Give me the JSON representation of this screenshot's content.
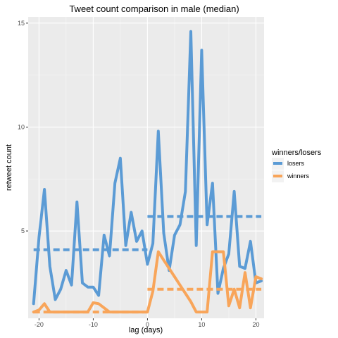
{
  "chart_data": {
    "type": "line",
    "title": "Tweet count comparison in male  (median)",
    "xlabel": "lag (days)",
    "ylabel": "retweet count",
    "xlim": [
      -22,
      21.5
    ],
    "ylim": [
      0.8,
      15.3
    ],
    "xticks": [
      -20,
      -10,
      0,
      10,
      20
    ],
    "yticks": [
      5,
      10,
      15
    ],
    "grid": true,
    "legend": {
      "title": "winners/losers",
      "position": "right"
    },
    "series": [
      {
        "name": "losers",
        "color": "#5b9bd5",
        "style": "solid",
        "x": [
          -21,
          -20,
          -19,
          -18,
          -17,
          -16,
          -15,
          -14,
          -13,
          -12,
          -11,
          -10,
          -9,
          -8,
          -7,
          -6,
          -5,
          -4,
          -3,
          -2,
          -1,
          0,
          1,
          2,
          3,
          4,
          5,
          6,
          7,
          8,
          9,
          10,
          11,
          12,
          13,
          14,
          15,
          16,
          17,
          18,
          19,
          20,
          21
        ],
        "y": [
          1.5,
          4.7,
          7.0,
          3.3,
          1.7,
          2.2,
          3.1,
          2.4,
          6.4,
          2.5,
          2.3,
          2.3,
          1.9,
          4.8,
          3.8,
          7.3,
          8.5,
          4.3,
          5.9,
          4.5,
          5.0,
          3.4,
          4.4,
          9.8,
          4.9,
          3.1,
          4.8,
          5.3,
          6.9,
          14.6,
          4.3,
          13.7,
          5.3,
          7.3,
          2.0,
          3.2,
          3.9,
          6.9,
          3.3,
          3.2,
          4.5,
          2.5,
          2.6
        ]
      },
      {
        "name": "winners",
        "color": "#f8a55a",
        "style": "solid",
        "x": [
          -21,
          -20,
          -19,
          -18,
          -17,
          -16,
          -15,
          -14,
          -13,
          -12,
          -11,
          -10,
          -9,
          -8,
          -7,
          -6,
          -5,
          -4,
          -3,
          -2,
          -1,
          0,
          1,
          2,
          3,
          4,
          5,
          6,
          7,
          8,
          9,
          10,
          11,
          12,
          13,
          14,
          15,
          16,
          17,
          18,
          19,
          20,
          21
        ],
        "y": [
          1.1,
          1.2,
          1.5,
          1.1,
          1.1,
          1.1,
          1.1,
          1.1,
          1.1,
          1.1,
          1.1,
          1.55,
          1.5,
          1.3,
          1.1,
          1.1,
          1.1,
          1.1,
          1.1,
          1.1,
          1.1,
          1.1,
          2.1,
          4.0,
          3.6,
          3.2,
          2.8,
          2.4,
          2.0,
          1.6,
          1.1,
          1.1,
          1.1,
          4.0,
          4.0,
          4.0,
          1.4,
          2.2,
          1.3,
          3.0,
          1.3,
          2.8,
          2.7
        ]
      },
      {
        "name": "losers",
        "color": "#5b9bd5",
        "style": "dashed",
        "x": [
          -21,
          0
        ],
        "y": [
          4.1,
          4.1
        ]
      },
      {
        "name": "losers",
        "color": "#5b9bd5",
        "style": "dashed",
        "x": [
          0,
          21
        ],
        "y": [
          5.7,
          5.7
        ]
      },
      {
        "name": "winners",
        "color": "#f8a55a",
        "style": "dashed",
        "x": [
          -21,
          0
        ],
        "y": [
          1.1,
          1.1
        ]
      },
      {
        "name": "winners",
        "color": "#f8a55a",
        "style": "dashed",
        "x": [
          0,
          21
        ],
        "y": [
          2.2,
          2.2
        ]
      }
    ]
  }
}
